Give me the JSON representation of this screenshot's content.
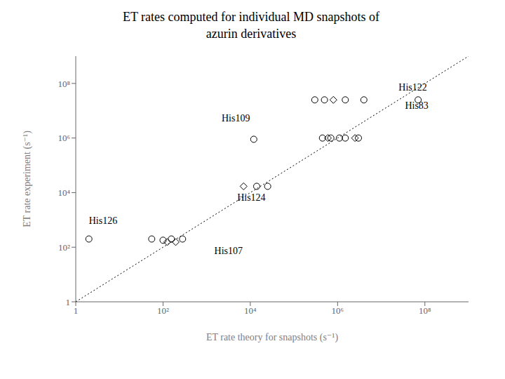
{
  "chart_data": {
    "type": "scatter",
    "title": "ET rates computed for individual MD snapshots of\nazurin derivatives",
    "xlabel": "ET rate theory for snapshots (s⁻¹)",
    "ylabel": "ET rate experiment (s⁻¹)",
    "log": true,
    "grid": false,
    "xlim": [
      1,
      1000000000.0
    ],
    "ylim": [
      1,
      1000000000.0
    ],
    "xticks": [
      1,
      {
        "value": 100,
        "label": "10²"
      },
      {
        "value": 10000,
        "label": "10⁴"
      },
      {
        "value": 1000000,
        "label": "10⁶"
      },
      {
        "value": 100000000,
        "label": "10⁸"
      }
    ],
    "yticks": [
      1,
      {
        "value": 100,
        "label": "10²"
      },
      {
        "value": 10000,
        "label": "10⁴"
      },
      {
        "value": 1000000,
        "label": "10⁶"
      },
      {
        "value": 100000000,
        "label": "10⁸"
      }
    ],
    "series": [
      {
        "type": "line",
        "line_style": "dotted",
        "color": "#000000",
        "x": [
          1,
          1000000000.0
        ],
        "values": [
          1,
          1000000000.0
        ]
      },
      {
        "type": "scatter",
        "marker": "circle",
        "color": "#000000",
        "x": [
          2,
          55,
          100,
          155,
          280
        ],
        "values": [
          200,
          200,
          180,
          200,
          200
        ]
      },
      {
        "type": "scatter",
        "marker": "diamond",
        "color": "#000000",
        "x": [
          125,
          195
        ],
        "values": [
          155,
          155
        ]
      },
      {
        "type": "scatter",
        "marker": "circle",
        "color": "#000000",
        "x": [
          14000,
          25000
        ],
        "values": [
          17000,
          17000
        ]
      },
      {
        "type": "scatter",
        "marker": "diamond",
        "color": "#000000",
        "x": [
          7000
        ],
        "values": [
          17000
        ]
      },
      {
        "type": "scatter",
        "marker": "circle",
        "color": "#000000",
        "x": [
          12000
        ],
        "values": [
          900000
        ]
      },
      {
        "type": "scatter",
        "marker": "circle",
        "color": "#000000",
        "x": [
          450000,
          700000,
          1100000,
          1500000,
          3000000
        ],
        "values": [
          1000000,
          1000000,
          1000000,
          1000000,
          1000000
        ]
      },
      {
        "type": "scatter",
        "marker": "diamond",
        "color": "#000000",
        "x": [
          600000,
          2500000
        ],
        "values": [
          1000000,
          1000000
        ]
      },
      {
        "type": "scatter",
        "marker": "circle",
        "color": "#000000",
        "x": [
          300000,
          500000,
          1500000,
          4000000,
          70000000
        ],
        "values": [
          25000000,
          25000000,
          25000000,
          25000000,
          25000000
        ]
      },
      {
        "type": "scatter",
        "marker": "diamond",
        "color": "#000000",
        "x": [
          800000
        ],
        "values": [
          25000000
        ]
      }
    ],
    "annotations": [
      {
        "text": "His126",
        "x": 2,
        "y": 700
      },
      {
        "text": "His107",
        "x": 1500,
        "y": 55
      },
      {
        "text": "His109",
        "x": 2200,
        "y": 4000000
      },
      {
        "text": "His124",
        "x": 5000,
        "y": 5000
      },
      {
        "text": "His122",
        "x": 25000000,
        "y": 55000000
      },
      {
        "text": "His83",
        "x": 35000000,
        "y": 12000000
      }
    ]
  }
}
